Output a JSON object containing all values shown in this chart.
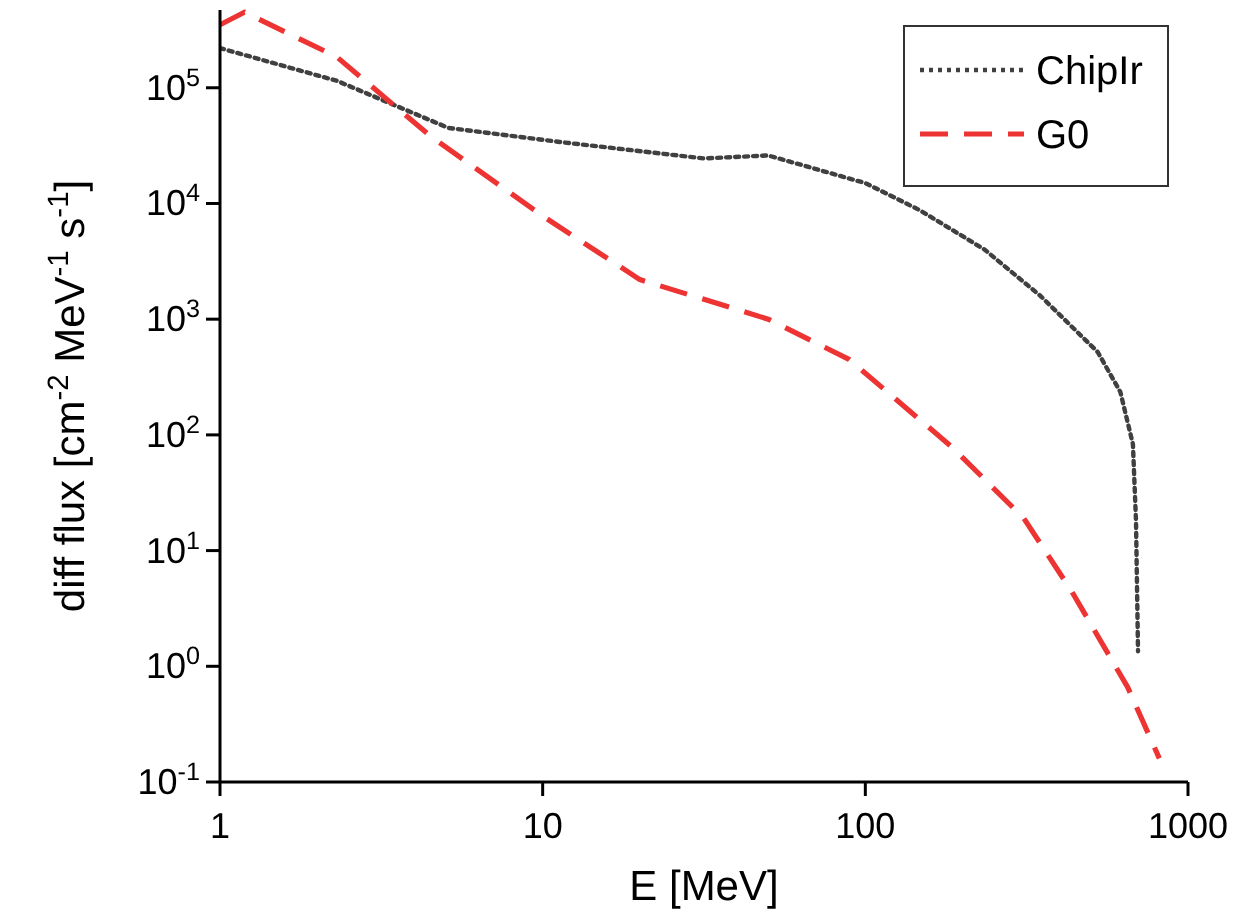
{
  "chart_data": {
    "type": "line",
    "xlabel": "E [MeV]",
    "ylabel": "diff flux [cm$^{-2}$ MeV$^{-1}$ s$^{-1}$]",
    "log": "xy",
    "grid": false,
    "legend": "top right",
    "marker": "none",
    "xlim": [
      1,
      1000
    ],
    "xticks": [
      1,
      10,
      100,
      1000
    ],
    "ylim": [
      0.1,
      470000
    ],
    "yticks": [
      {
        "value": 0.1,
        "label": "10$^{-1}$"
      },
      {
        "value": 1,
        "label": "10$^{0}$"
      },
      {
        "value": 10,
        "label": "10$^{1}$"
      },
      {
        "value": 100,
        "label": "10$^{2}$"
      },
      {
        "value": 1000,
        "label": "10$^{3}$"
      },
      {
        "value": 10000,
        "label": "10$^{4}$"
      },
      {
        "value": 100000,
        "label": "10$^{5}$"
      }
    ],
    "series": [
      {
        "name": "ChipIr",
        "color": "#404040",
        "line_style": "dotted",
        "x": [
          1,
          2.3,
          5.1,
          11.3,
          31.6,
          50,
          100,
          148,
          234,
          348,
          525,
          617,
          675,
          690,
          700
        ],
        "values": [
          220000,
          115000,
          45000,
          34000,
          24500,
          26000,
          15000,
          8700,
          4000,
          1600,
          520,
          235,
          83,
          18,
          1.35
        ]
      },
      {
        "name": "G0",
        "color": "#ee3333",
        "line_style": "dashed",
        "x": [
          1,
          1.19,
          2.3,
          4.5,
          10,
          20,
          50,
          89,
          186,
          310,
          437,
          650,
          815
        ],
        "values": [
          350000,
          450000,
          185000,
          38000,
          7800,
          2200,
          1000,
          450,
          78,
          19,
          4.4,
          0.66,
          0.16
        ]
      }
    ]
  }
}
